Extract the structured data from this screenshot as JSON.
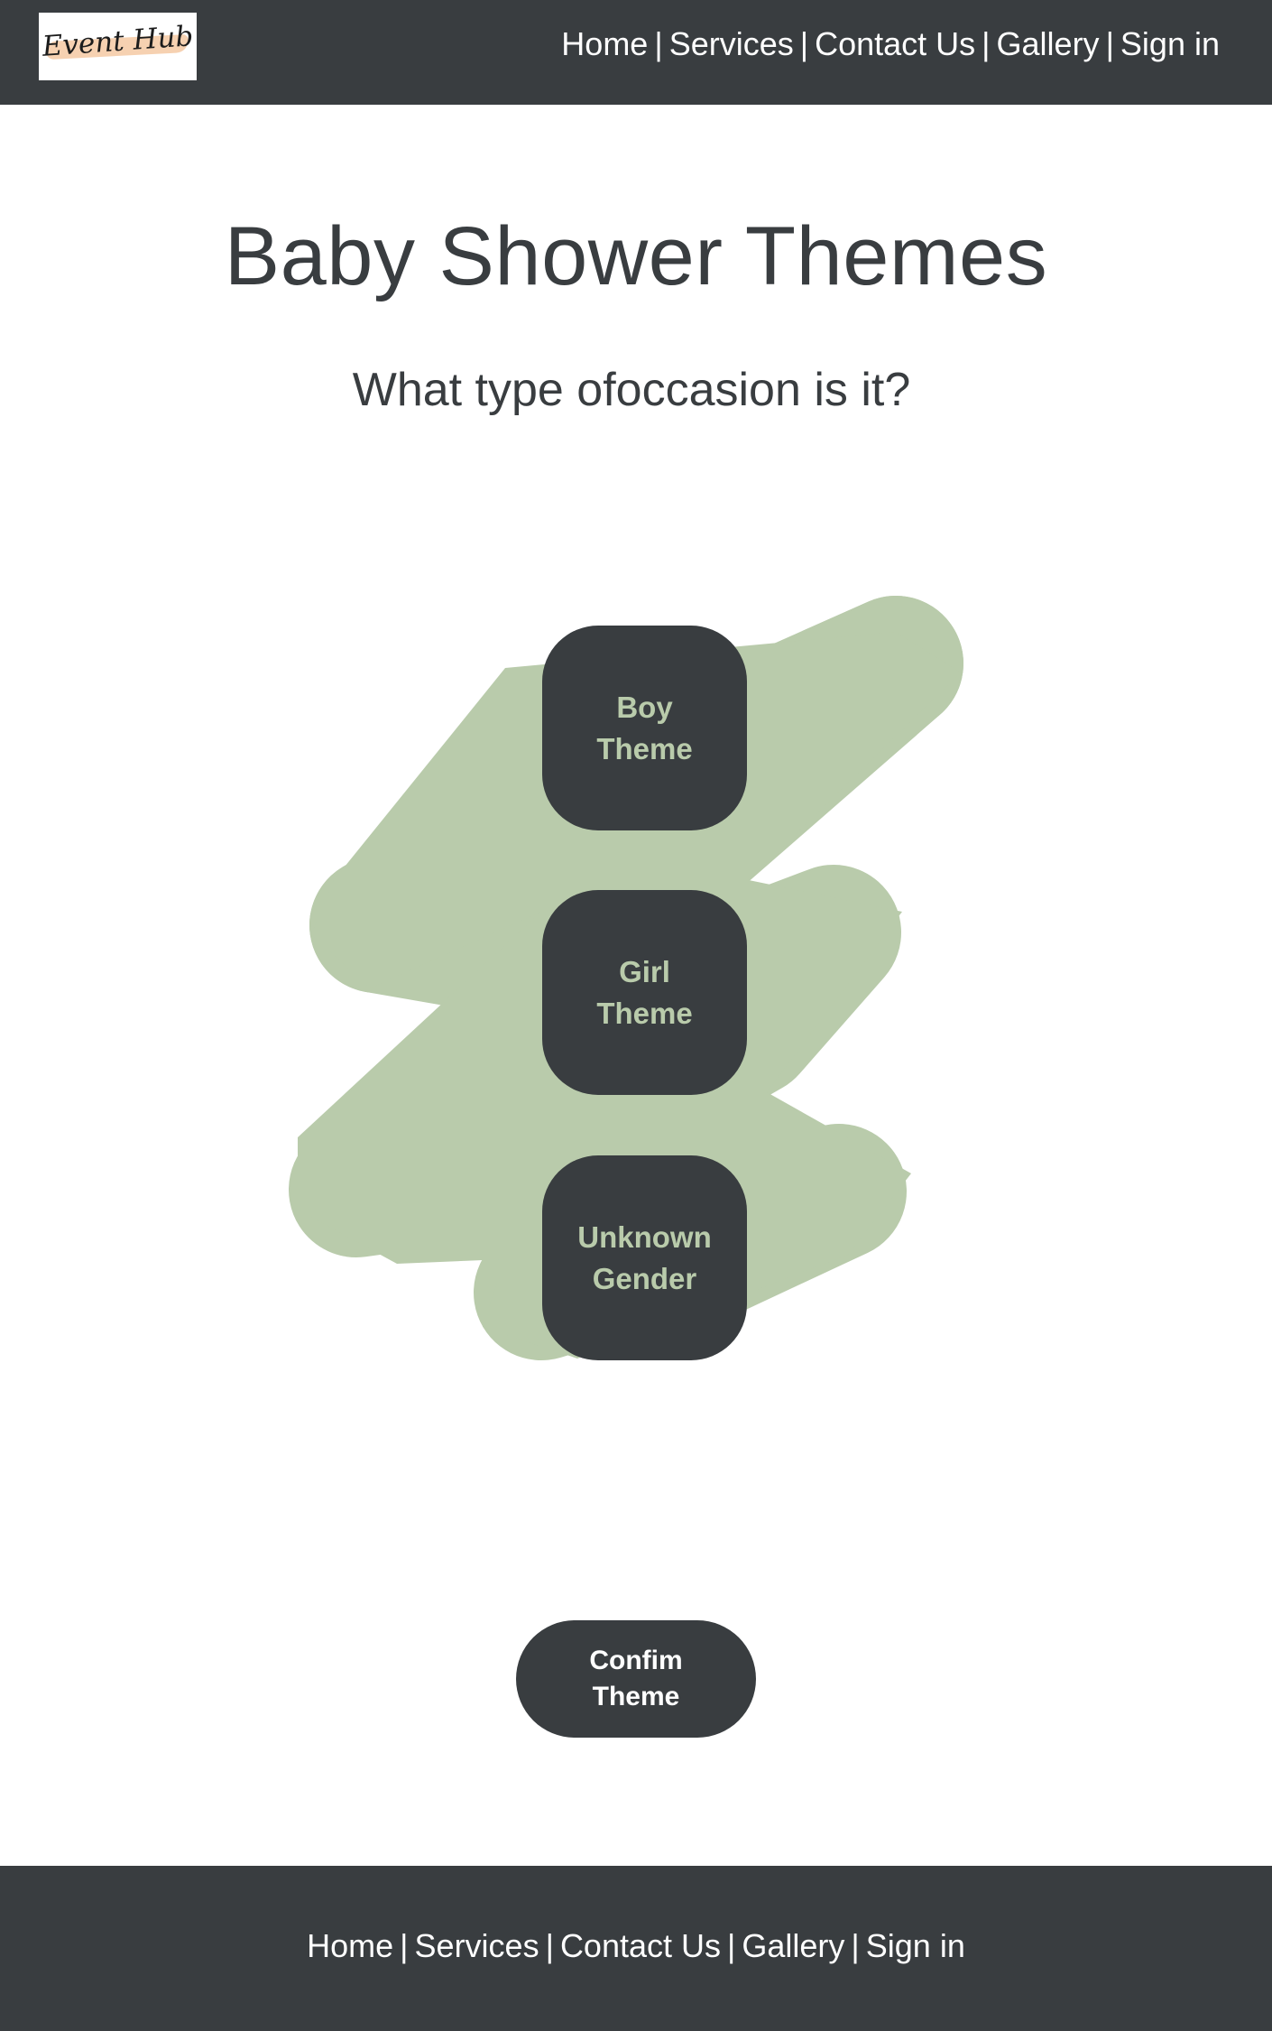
{
  "header": {
    "logo_text": "Event Hub",
    "nav": [
      {
        "label": "Home"
      },
      {
        "label": "Services"
      },
      {
        "label": "Contact Us"
      },
      {
        "label": "Gallery"
      },
      {
        "label": "Sign in"
      }
    ],
    "separator": "|"
  },
  "main": {
    "title": "Baby Shower Themes",
    "subtitle": "What type ofoccasion is it?",
    "themes": [
      {
        "label": "Boy\nTheme"
      },
      {
        "label": "Girl\nTheme"
      },
      {
        "label": "Unknown\nGender"
      }
    ],
    "confirm_label": "Confim\nTheme"
  },
  "footer": {
    "nav": [
      {
        "label": "Home"
      },
      {
        "label": "Services"
      },
      {
        "label": "Contact Us"
      },
      {
        "label": "Gallery"
      },
      {
        "label": "Sign in"
      }
    ],
    "separator": "|"
  },
  "colors": {
    "dark": "#393d40",
    "sage": "#b9cbab",
    "white": "#ffffff",
    "logo_brush": "#f4c9a3"
  }
}
